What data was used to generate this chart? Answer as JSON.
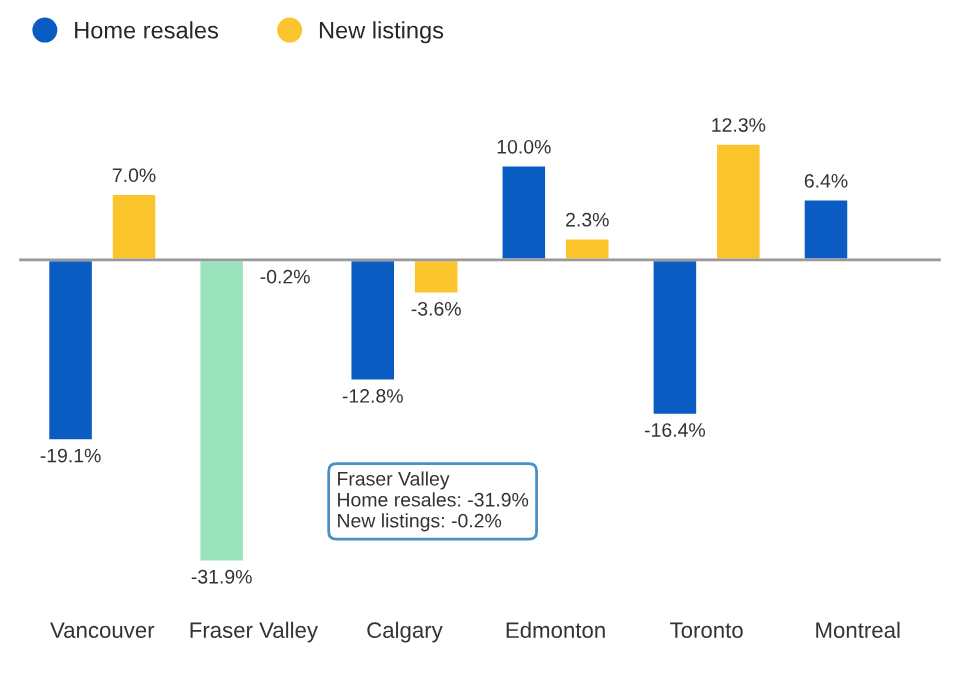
{
  "chart_data": {
    "type": "bar",
    "categories": [
      "Vancouver",
      "Fraser Valley",
      "Calgary",
      "Edmonton",
      "Toronto",
      "Montreal"
    ],
    "series": [
      {
        "name": "Home resales",
        "color": "#0a5cc2",
        "colors": [
          "#0a5cc2",
          "#9be3bd",
          "#0a5cc2",
          "#0a5cc2",
          "#0a5cc2",
          "#0a5cc2"
        ],
        "values": [
          -19.1,
          -31.9,
          -12.8,
          10.0,
          -16.4,
          6.4
        ],
        "value_labels": [
          "-19.1%",
          "-31.9%",
          "-12.8%",
          "10.0%",
          "-16.4%",
          "6.4%"
        ]
      },
      {
        "name": "New listings",
        "color": "#fcc42c",
        "values": [
          7.0,
          -0.2,
          -3.6,
          2.3,
          12.3,
          null
        ],
        "value_labels": [
          "7.0%",
          "-0.2%",
          "-3.6%",
          "2.3%",
          "12.3%",
          null
        ]
      }
    ],
    "legend": "top left",
    "annotations": [
      "Fraser Valley",
      "Home resales: -31.9%",
      "New listings: -0.2%"
    ]
  }
}
